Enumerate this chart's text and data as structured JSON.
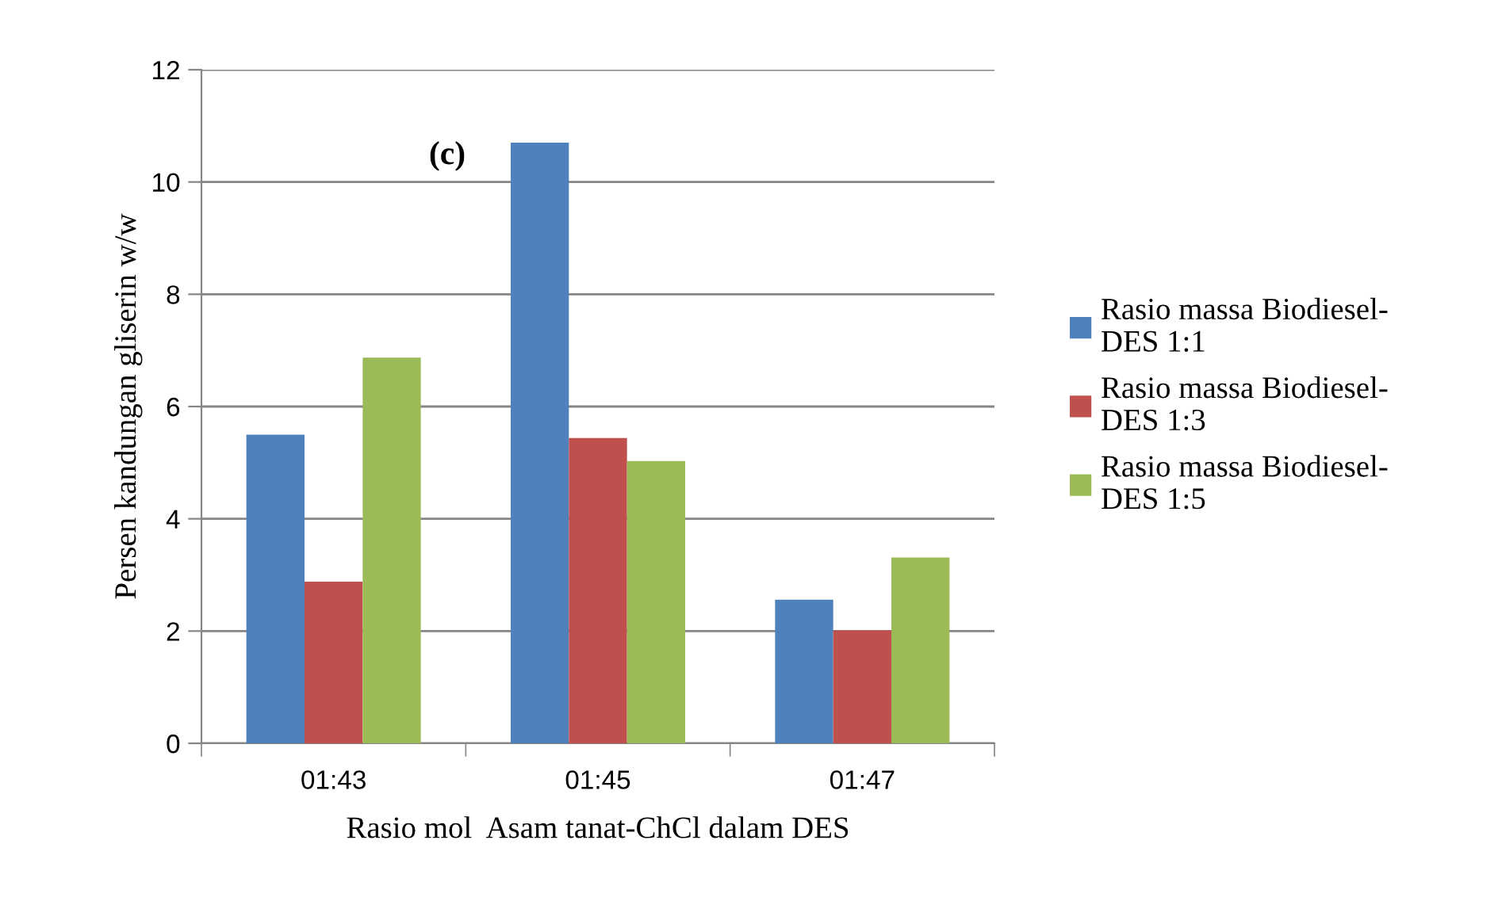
{
  "chart_data": {
    "type": "bar",
    "categories": [
      "01:43",
      "01:45",
      "01:47"
    ],
    "series": [
      {
        "name": "Rasio massa Biodiesel-\nDES 1:1",
        "color": "#4f81bd",
        "values": [
          5.5,
          10.7,
          2.56
        ]
      },
      {
        "name": "Rasio massa Biodiesel-\nDES 1:3",
        "color": "#c0504d",
        "values": [
          2.88,
          5.44,
          2.01
        ]
      },
      {
        "name": "Rasio massa Biodiesel-\nDES 1:5",
        "color": "#9bbb59",
        "values": [
          6.87,
          5.03,
          3.31
        ]
      }
    ],
    "xlabel": "Rasio mol  Asam tanat-ChCl dalam DES",
    "ylabel": "Persen kandungan gliserin w/w",
    "annotations": [
      "(c)"
    ],
    "ylim": [
      0,
      12
    ],
    "yticks": [
      0,
      2,
      4,
      6,
      8,
      10,
      12
    ],
    "grid": "y",
    "legend": "right"
  }
}
